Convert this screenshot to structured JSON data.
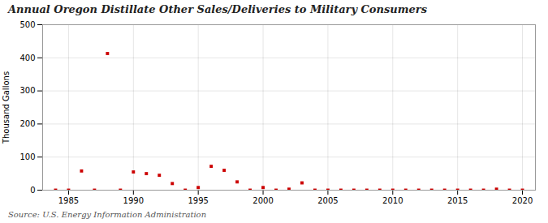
{
  "chart_data": {
    "type": "scatter",
    "title": "Annual Oregon Distillate Other Sales/Deliveries to Military Consumers",
    "ylabel": "Thousand Gallons",
    "annotation": "Source: U.S. Energy Information Administration",
    "x": [
      1984,
      1985,
      1986,
      1987,
      1988,
      1989,
      1990,
      1991,
      1992,
      1993,
      1994,
      1995,
      1996,
      1997,
      1998,
      1999,
      2000,
      2001,
      2002,
      2003,
      2004,
      2005,
      2006,
      2007,
      2008,
      2009,
      2010,
      2011,
      2012,
      2013,
      2014,
      2015,
      2016,
      2017,
      2018,
      2019,
      2020
    ],
    "values": [
      0,
      0,
      58,
      0,
      413,
      0,
      55,
      50,
      45,
      20,
      0,
      8,
      72,
      60,
      25,
      0,
      8,
      0,
      3,
      22,
      0,
      0,
      0,
      0,
      0,
      0,
      0,
      0,
      0,
      0,
      0,
      0,
      0,
      0,
      3,
      0,
      0
    ],
    "color": "#cc0000",
    "marker": "square",
    "xlim": [
      1983,
      2021
    ],
    "ylim": [
      0,
      500
    ],
    "xticks": [
      1985,
      1990,
      1995,
      2000,
      2005,
      2010,
      2015,
      2020
    ],
    "yticks": [
      0,
      100,
      200,
      300,
      400,
      500
    ],
    "grid": true
  }
}
